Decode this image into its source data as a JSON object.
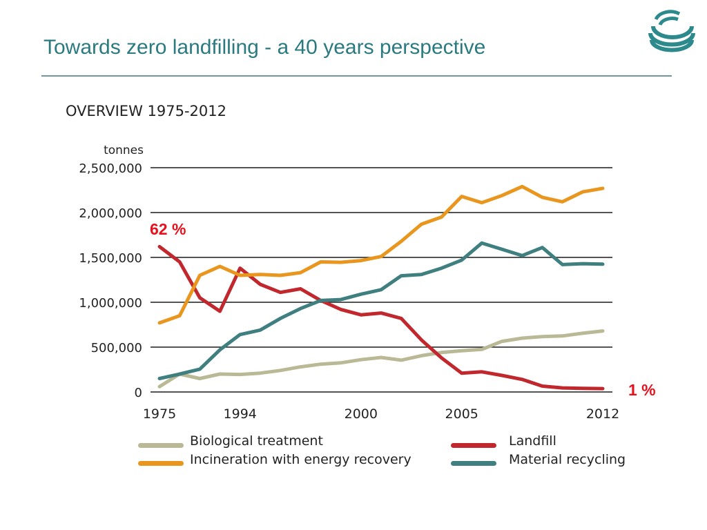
{
  "slide": {
    "title": "Towards zero landfilling - a 40 years perspective"
  },
  "chart_data": {
    "type": "line",
    "title": "OVERVIEW 1975-2012",
    "ylabel": "tonnes",
    "xlabel": "",
    "ylim": [
      0,
      2500000
    ],
    "yticks": [
      {
        "value": 0,
        "label": "0"
      },
      {
        "value": 500000,
        "label": "500,000"
      },
      {
        "value": 1000000,
        "label": "1,000,000"
      },
      {
        "value": 1500000,
        "label": "1,500,000"
      },
      {
        "value": 2000000,
        "label": "2,000,000"
      },
      {
        "value": 2500000,
        "label": "2,500,000"
      }
    ],
    "xticks": [
      {
        "index": 0,
        "label": "1975"
      },
      {
        "index": 4,
        "label": "1994"
      },
      {
        "index": 10,
        "label": "2000"
      },
      {
        "index": 15,
        "label": "2005"
      },
      {
        "index": 22,
        "label": "2012"
      }
    ],
    "grid": true,
    "legend_placement": "bottom",
    "series": [
      {
        "name": "Biological treatment",
        "color": "#b9b996",
        "values": [
          60000,
          200000,
          150000,
          200000,
          195000,
          210000,
          240000,
          280000,
          310000,
          325000,
          360000,
          385000,
          355000,
          405000,
          440000,
          460000,
          475000,
          565000,
          600000,
          618000,
          625000,
          655000,
          680000
        ]
      },
      {
        "name": "Landfill",
        "color": "#c0282d",
        "values": [
          1620000,
          1450000,
          1050000,
          900000,
          1380000,
          1200000,
          1110000,
          1150000,
          1020000,
          920000,
          860000,
          880000,
          820000,
          580000,
          380000,
          210000,
          225000,
          185000,
          140000,
          65000,
          45000,
          40000,
          38000
        ]
      },
      {
        "name": "Incineration with energy recovery",
        "color": "#e8961e",
        "values": [
          770000,
          850000,
          1300000,
          1400000,
          1300000,
          1310000,
          1300000,
          1330000,
          1450000,
          1445000,
          1465000,
          1510000,
          1680000,
          1870000,
          1950000,
          2180000,
          2110000,
          2190000,
          2290000,
          2170000,
          2120000,
          2230000,
          2270000
        ]
      },
      {
        "name": "Material recycling",
        "color": "#3f7f80",
        "values": [
          150000,
          200000,
          255000,
          470000,
          640000,
          690000,
          820000,
          930000,
          1020000,
          1030000,
          1090000,
          1140000,
          1295000,
          1310000,
          1380000,
          1470000,
          1660000,
          1590000,
          1520000,
          1610000,
          1420000,
          1430000,
          1425000
        ]
      }
    ],
    "annotations": [
      {
        "text": "62 %",
        "color": "#e8101c"
      },
      {
        "text": "1 %",
        "color": "#e8101c"
      }
    ]
  },
  "legend": {
    "items": [
      {
        "label": "Biological treatment",
        "color": "#b9b996"
      },
      {
        "label": "Incineration with energy recovery",
        "color": "#e8961e"
      },
      {
        "label": "Landfill",
        "color": "#c0282d"
      },
      {
        "label": "Material recycling",
        "color": "#3f7f80"
      }
    ]
  }
}
